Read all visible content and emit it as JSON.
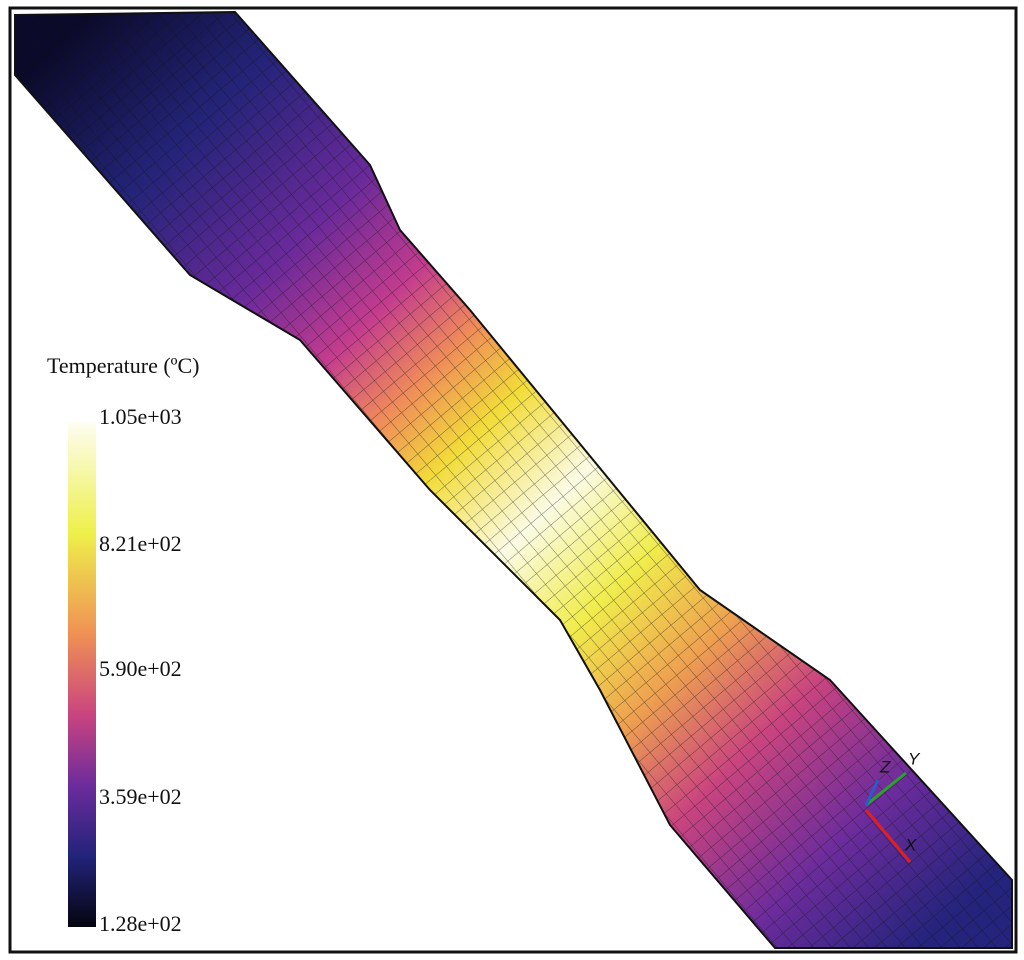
{
  "colorbar": {
    "title": "Temperature (ºC)",
    "ticks": [
      "1.05e+03",
      "8.21e+02",
      "5.90e+02",
      "3.59e+02",
      "1.28e+02"
    ]
  },
  "triad": {
    "y": "Y",
    "z": "Z",
    "x": "X"
  }
}
